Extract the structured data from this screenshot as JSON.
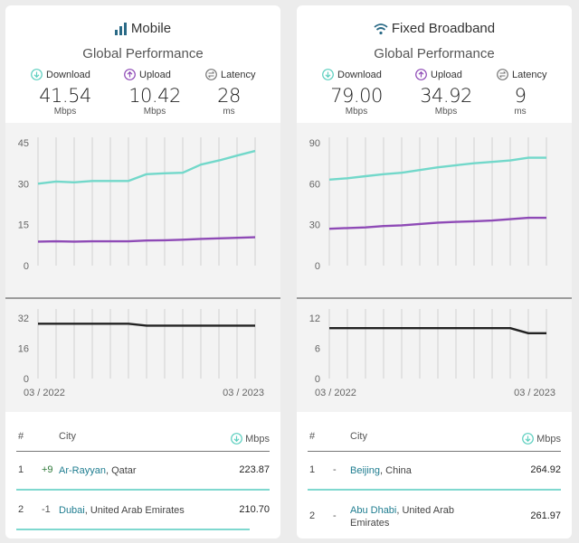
{
  "colors": {
    "download": "#72d8ca",
    "upload": "#8e4ab6",
    "latency": "#222222",
    "grid": "#d2d2d2",
    "rule": "#7fd8cf"
  },
  "panels": [
    {
      "title": "Mobile",
      "title_icon": "signal-bars-icon",
      "subtitle": "Global Performance",
      "metrics": {
        "download": {
          "label": "Download",
          "value": "41.54",
          "unit": "Mbps"
        },
        "upload": {
          "label": "Upload",
          "value": "10.42",
          "unit": "Mbps"
        },
        "latency": {
          "label": "Latency",
          "value": "28",
          "unit": "ms"
        }
      },
      "table": {
        "col_rank": "#",
        "col_city": "City",
        "col_speed": "Mbps",
        "rows": [
          {
            "rank": "1",
            "change": "+9",
            "city": "Ar-Rayyan",
            "country": ", Qatar",
            "speed": "223.87"
          },
          {
            "rank": "2",
            "change": "-1",
            "city": "Dubai",
            "country": ", United Arab Emirates",
            "speed": "210.70"
          }
        ]
      }
    },
    {
      "title": "Fixed Broadband",
      "title_icon": "wifi-icon",
      "subtitle": "Global Performance",
      "metrics": {
        "download": {
          "label": "Download",
          "value": "79.00",
          "unit": "Mbps"
        },
        "upload": {
          "label": "Upload",
          "value": "34.92",
          "unit": "Mbps"
        },
        "latency": {
          "label": "Latency",
          "value": "9",
          "unit": "ms"
        }
      },
      "table": {
        "col_rank": "#",
        "col_city": "City",
        "col_speed": "Mbps",
        "rows": [
          {
            "rank": "1",
            "change": "-",
            "city": "Beijing",
            "country": ", China",
            "speed": "264.92"
          },
          {
            "rank": "2",
            "change": "-",
            "city": "Abu Dhabi",
            "country": ", United Arab Emirates",
            "speed": "261.97"
          }
        ]
      }
    }
  ],
  "chart_data": [
    {
      "type": "line",
      "title": "Mobile — Global Performance",
      "x": [
        "03/2022",
        "04/2022",
        "05/2022",
        "06/2022",
        "07/2022",
        "08/2022",
        "09/2022",
        "10/2022",
        "11/2022",
        "12/2022",
        "01/2023",
        "02/2023",
        "03/2023"
      ],
      "x_tick_labels": [
        "03 / 2022",
        "03 / 2023"
      ],
      "ylim": [
        0,
        45
      ],
      "yticks": [
        "45",
        "30",
        "15",
        "0"
      ],
      "series": [
        {
          "name": "Download",
          "values": [
            30.0,
            30.8,
            30.5,
            31.0,
            31.0,
            31.0,
            33.5,
            33.8,
            34.0,
            37.0,
            38.5,
            40.3,
            42.0
          ]
        },
        {
          "name": "Upload",
          "values": [
            8.8,
            8.9,
            8.8,
            8.9,
            8.9,
            8.9,
            9.2,
            9.3,
            9.5,
            9.8,
            10.0,
            10.2,
            10.4
          ]
        }
      ],
      "latency": {
        "name": "Latency",
        "ylim": [
          0,
          32
        ],
        "yticks": [
          "32",
          "16",
          "0"
        ],
        "values": [
          29,
          29,
          29,
          29,
          29,
          29,
          28,
          28,
          28,
          28,
          28,
          28,
          28
        ]
      }
    },
    {
      "type": "line",
      "title": "Fixed Broadband — Global Performance",
      "x": [
        "03/2022",
        "04/2022",
        "05/2022",
        "06/2022",
        "07/2022",
        "08/2022",
        "09/2022",
        "10/2022",
        "11/2022",
        "12/2022",
        "01/2023",
        "02/2023",
        "03/2023"
      ],
      "x_tick_labels": [
        "03 / 2022",
        "03 / 2023"
      ],
      "ylim": [
        0,
        90
      ],
      "yticks": [
        "90",
        "60",
        "30",
        "0"
      ],
      "series": [
        {
          "name": "Download",
          "values": [
            63.0,
            64.0,
            65.5,
            67.0,
            68.0,
            70.0,
            72.0,
            73.5,
            75.0,
            76.0,
            77.0,
            79.0,
            79.0
          ]
        },
        {
          "name": "Upload",
          "values": [
            27.0,
            27.5,
            28.0,
            29.0,
            29.5,
            30.5,
            31.5,
            32.0,
            32.5,
            33.0,
            34.0,
            35.0,
            35.0
          ]
        }
      ],
      "latency": {
        "name": "Latency",
        "ylim": [
          0,
          12
        ],
        "yticks": [
          "12",
          "6",
          "0"
        ],
        "values": [
          10,
          10,
          10,
          10,
          10,
          10,
          10,
          10,
          10,
          10,
          10,
          9,
          9
        ]
      }
    }
  ]
}
